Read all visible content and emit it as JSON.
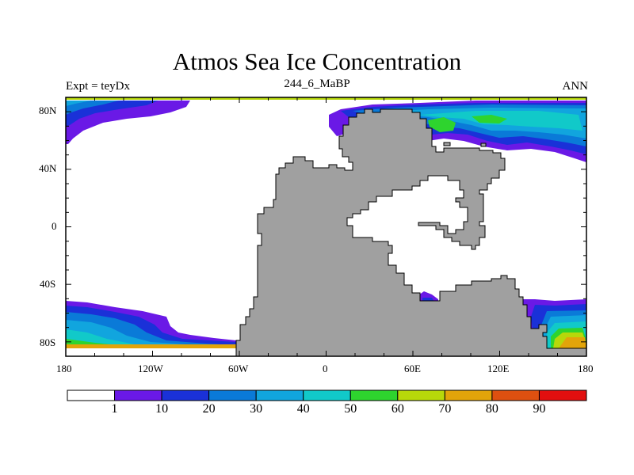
{
  "title": "Atmos Sea Ice Concentration",
  "left_label": "Expt = teyDx",
  "center_label": "244_6_MaBP",
  "right_label": "ANN",
  "lat_ticks": [
    "80N",
    "40N",
    "0",
    "40S",
    "80S"
  ],
  "lon_ticks": [
    "180",
    "120W",
    "60W",
    "0",
    "60E",
    "120E",
    "180"
  ],
  "colorbar": {
    "labels": [
      "1",
      "10",
      "20",
      "30",
      "40",
      "50",
      "60",
      "70",
      "80",
      "90"
    ],
    "colors": [
      "#ffffff",
      "#6a19e6",
      "#1a31d8",
      "#0a7ad8",
      "#11a5de",
      "#11c9c9",
      "#2ed42e",
      "#b7d80a",
      "#e2a40a",
      "#de5010",
      "#e20f0f"
    ]
  },
  "land_color": "#a0a0a0"
}
